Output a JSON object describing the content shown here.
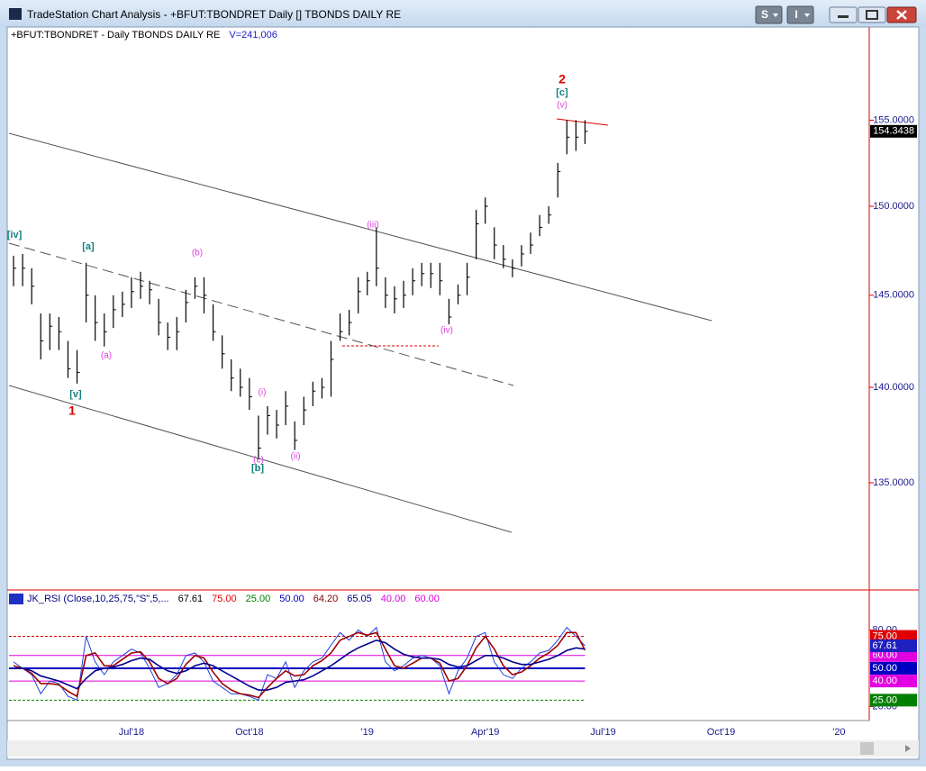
{
  "window": {
    "title": "TradeStation Chart Analysis - +BFUT:TBONDRET Daily [] TBONDS DAILY RE",
    "buttons": [
      "S",
      "I"
    ]
  },
  "chart_data": [
    {
      "type": "ohlc",
      "title": "+BFUT:TBONDRET - Daily  TBONDS DAILY RE",
      "volume_label": "V=241,006",
      "color": "#000000",
      "log_scale": true,
      "categories": [
        null,
        null,
        null,
        null,
        null,
        null,
        null,
        null,
        null,
        null,
        null,
        null,
        null,
        "Jul'18",
        null,
        null,
        null,
        null,
        null,
        null,
        null,
        null,
        null,
        null,
        null,
        null,
        "Oct'18",
        null,
        null,
        null,
        null,
        null,
        null,
        null,
        null,
        null,
        null,
        null,
        null,
        "'19",
        null,
        null,
        null,
        null,
        null,
        null,
        null,
        null,
        null,
        null,
        null,
        null,
        "Apr'19",
        null,
        null,
        null,
        null,
        null,
        null,
        null,
        null,
        null,
        null,
        null,
        null,
        "Jul'19",
        null,
        null,
        null,
        null,
        null,
        null,
        null,
        null,
        null,
        null,
        null,
        null,
        "Oct'19",
        null,
        null,
        null,
        null,
        null,
        null,
        null,
        null,
        null,
        null,
        null,
        null,
        "'20"
      ],
      "high": [
        147.2,
        147.3,
        146.5,
        144,
        144,
        143.8,
        142.5,
        142,
        146.8,
        145,
        144,
        145,
        145.2,
        146,
        146.3,
        145.8,
        144.8,
        143.5,
        143.8,
        145.3,
        146,
        146,
        144.5,
        142.8,
        141.5,
        141,
        140.5,
        138.5,
        139,
        138.8,
        139.8,
        138.2,
        139.5,
        140.3,
        140.5,
        142.5,
        144,
        144.2,
        146,
        146.3,
        148.8,
        146,
        145.5,
        145.8,
        146.5,
        146.8,
        146.8,
        146.8,
        144.8,
        145.6,
        146.8,
        149.8,
        150.5,
        148.8,
        147.8,
        147,
        147.8,
        148.5,
        149.5,
        150,
        152.5,
        155,
        155,
        155,
        null,
        null,
        null,
        null,
        null,
        null,
        null,
        null,
        null,
        null,
        null,
        null,
        null,
        null,
        null,
        null,
        null,
        null,
        null,
        null,
        null,
        null,
        null,
        null,
        null,
        null,
        null,
        null
      ],
      "low": [
        145.5,
        145.5,
        144.5,
        141.5,
        142,
        142,
        140.5,
        140.2,
        143.5,
        142.5,
        142.2,
        143.2,
        143.8,
        144.3,
        144.8,
        144.5,
        142.8,
        142,
        142,
        143.5,
        144.8,
        144,
        142.5,
        141,
        139.8,
        139.5,
        138.8,
        136.2,
        137.5,
        137.3,
        138,
        136.7,
        138,
        139,
        139.4,
        139.5,
        142.5,
        142.8,
        144,
        145,
        145.5,
        144.3,
        144,
        144.3,
        145,
        145.5,
        145.4,
        145,
        143.4,
        144.5,
        145,
        147,
        149,
        147,
        146.5,
        146,
        146.6,
        147.3,
        148.3,
        149,
        150.5,
        153,
        153.2,
        153.6,
        null,
        null,
        null,
        null,
        null,
        null,
        null,
        null,
        null,
        null,
        null,
        null,
        null,
        null,
        null,
        null,
        null,
        null,
        null,
        null,
        null,
        null,
        null,
        null,
        null,
        null,
        null,
        null
      ],
      "close": [
        146.5,
        146.5,
        145.5,
        142.5,
        143.3,
        143,
        141,
        140.8,
        145,
        143.5,
        143,
        144.2,
        144.5,
        145.2,
        145.5,
        145.3,
        143.5,
        142.7,
        143,
        144.6,
        145.5,
        145,
        143,
        141.8,
        140.5,
        140,
        139.5,
        136.8,
        138.5,
        138,
        139,
        137.2,
        138.8,
        139.8,
        140,
        141.5,
        143,
        143.5,
        145.2,
        145.8,
        146.5,
        145,
        144.8,
        145,
        145.8,
        146.2,
        146.2,
        145.8,
        143.8,
        145,
        146,
        149,
        150,
        147.8,
        147,
        146.5,
        147.3,
        147.8,
        148.8,
        149.5,
        152,
        154,
        154,
        154.3438,
        null,
        null,
        null,
        null,
        null,
        null,
        null,
        null,
        null,
        null,
        null,
        null,
        null,
        null,
        null,
        null,
        null,
        null,
        null,
        null,
        null,
        null,
        null,
        null,
        null,
        null,
        null,
        null
      ],
      "last_price_label": "154.3438",
      "ylim": [
        129.6,
        160.6
      ],
      "yticks": [
        {
          "value": 135,
          "label": "135.0000"
        },
        {
          "value": 140,
          "label": "140.0000"
        },
        {
          "value": 145,
          "label": "145.0000"
        },
        {
          "value": 150,
          "label": "150.0000"
        },
        {
          "value": 155,
          "label": "155.0000"
        }
      ],
      "annotations": [
        {
          "text": "2",
          "color": "#e00000"
        },
        {
          "text": "[c]",
          "color": "#138080"
        },
        {
          "text": "(v)",
          "color": "#e040e0"
        },
        {
          "text": "[iv]",
          "color": "#138080"
        },
        {
          "text": "[a]",
          "color": "#138080"
        },
        {
          "text": "(b)",
          "color": "#e040e0"
        },
        {
          "text": "(iii)",
          "color": "#e040e0"
        },
        {
          "text": "(a)",
          "color": "#e040e0"
        },
        {
          "text": "(iv)",
          "color": "#e040e0"
        },
        {
          "text": "[v]",
          "color": "#138080"
        },
        {
          "text": "1",
          "color": "#e00000"
        },
        {
          "text": "(i)",
          "color": "#e040e0"
        },
        {
          "text": "(c)",
          "color": "#e040e0"
        },
        {
          "text": "[b]",
          "color": "#138080"
        },
        {
          "text": "(ii)",
          "color": "#e040e0"
        }
      ]
    },
    {
      "type": "line",
      "title": "JK_RSI (Close,10,25,75,\"S\",5,...",
      "legend_values": [
        {
          "label": "67.61",
          "color": "#000000"
        },
        {
          "label": "75.00",
          "color": "#e00000"
        },
        {
          "label": "25.00",
          "color": "#008000"
        },
        {
          "label": "50.00",
          "color": "#0000c0"
        },
        {
          "label": "64.20",
          "color": "#800000"
        },
        {
          "label": "65.05",
          "color": "#000080"
        },
        {
          "label": "40.00",
          "color": "#e000e0"
        },
        {
          "label": "60.00",
          "color": "#e000e0"
        }
      ],
      "series": [
        {
          "color": "#2040e0",
          "values": [
            55,
            50,
            45,
            30,
            40,
            38,
            28,
            25,
            75,
            55,
            45,
            55,
            60,
            65,
            62,
            50,
            35,
            38,
            45,
            60,
            62,
            55,
            40,
            35,
            30,
            30,
            28,
            25,
            45,
            42,
            55,
            35,
            48,
            55,
            58,
            68,
            78,
            72,
            80,
            75,
            82,
            55,
            48,
            52,
            58,
            60,
            58,
            52,
            30,
            48,
            58,
            75,
            78,
            55,
            45,
            42,
            50,
            55,
            62,
            64,
            72,
            82,
            75,
            67.61
          ]
        },
        {
          "color": "#a00000",
          "values": [
            52,
            50,
            46,
            38,
            38,
            37,
            32,
            28,
            60,
            62,
            52,
            52,
            57,
            62,
            63,
            55,
            42,
            38,
            42,
            53,
            60,
            58,
            47,
            38,
            33,
            30,
            29,
            27,
            35,
            42,
            48,
            44,
            45,
            52,
            56,
            62,
            72,
            75,
            78,
            76,
            78,
            65,
            52,
            50,
            54,
            58,
            58,
            54,
            40,
            42,
            52,
            66,
            75,
            65,
            52,
            45,
            47,
            52,
            58,
            62,
            68,
            78,
            78,
            64.2
          ]
        },
        {
          "color": "#000090",
          "values": [
            50,
            50,
            48,
            44,
            42,
            40,
            37,
            34,
            42,
            48,
            50,
            51,
            53,
            56,
            58,
            57,
            52,
            48,
            46,
            48,
            52,
            54,
            52,
            48,
            44,
            40,
            36,
            33,
            33,
            35,
            39,
            40,
            41,
            44,
            48,
            52,
            57,
            62,
            66,
            69,
            72,
            70,
            65,
            61,
            59,
            58,
            58,
            57,
            53,
            51,
            52,
            56,
            60,
            60,
            58,
            55,
            53,
            53,
            55,
            57,
            60,
            64,
            66,
            65.05
          ]
        }
      ],
      "ylim": [
        9,
        110
      ],
      "yticks": [
        {
          "value": 20,
          "label": "20.00"
        },
        {
          "value": 80,
          "label": "80.00"
        }
      ],
      "hlines": [
        {
          "value": 75,
          "label": "75.00",
          "color": "#e00000",
          "dash": true
        },
        {
          "value": 60,
          "label": "60.00",
          "color": "#e000e0",
          "dash": false
        },
        {
          "value": 50,
          "label": "50.00",
          "color": "#0000c0",
          "dash": false
        },
        {
          "value": 40,
          "label": "40.00",
          "color": "#e000e0",
          "dash": false
        },
        {
          "value": 25,
          "label": "25.00",
          "color": "#008000",
          "dash": true
        }
      ]
    }
  ]
}
